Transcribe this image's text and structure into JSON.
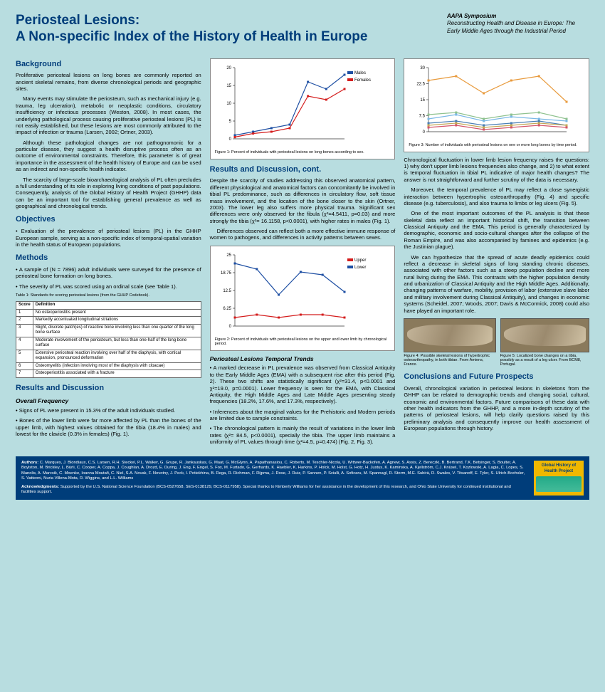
{
  "title_line1": "Periosteal Lesions:",
  "title_line2": "A Non-specific Index of the History of Health in Europe",
  "symposium": {
    "name": "AAPA Symposium",
    "subtitle": "Reconstructing Health and Disease in Europe: The Early Middle Ages through the Industrial Period"
  },
  "sections": {
    "background": {
      "heading": "Background",
      "p1": "Proliferative periosteal lesions on long bones are commonly reported on ancient skeletal remains, from diverse chronological periods and geographic sites.",
      "p2": "Many events may stimulate the periosteum, such as mechanical injury (e.g. trauma, leg ulceration), metabolic or neoplastic conditions, circulatory insufficiency or infectious processes (Weston, 2008). In most cases, the underlying pathological process causing proliferative periosteal lesions (PL) is not easily established, but these lesions are most commonly attributed to the impact of infection or trauma (Larsen, 2002; Ortner, 2003).",
      "p3": "Although these pathological changes are not pathognomonic for a particular disease, they suggest a health disruptive process often as an outcome of environmental constraints. Therefore, this parameter is of great importance in the assessment of the health history of Europe and can be used as an indirect and non-specific health indicator.",
      "p4": "The scarcity of large-scale bioarchaeological analysis of PL often precludes a full understanding of its role in exploring living conditions of past populations. Consequently, analysis of the Global History of Health Project (GHHP) data can be an important tool for establishing general prevalence as well as geographical and chronological trends."
    },
    "objectives": {
      "heading": "Objectives",
      "p1": "• Evaluation of the prevalence of periosteal lesions (PL) in the GHHP European sample, serving as a non-specific index of temporal-spatial variation in the health status of European populations."
    },
    "methods": {
      "heading": "Methods",
      "p1": "• A sample of (N = 7896) adult individuals were surveyed for the presence of periosteal bone formation on long bones.",
      "p2": "• The severity of PL was scored using an ordinal scale (see Table 1)."
    },
    "results": {
      "heading": "Results and Discussion",
      "overall_heading": "Overall Frequency",
      "p1": "• Signs of PL were present in 15.3% of the adult individuals studied.",
      "p2": "• Bones of the lower limb were far more affected by PL than the bones of the upper limb, with highest values obtained for the tibia (18.4% in males) and lowest for the clavicle (0.3% in females) (Fig. 1)."
    },
    "results_cont": {
      "heading": "Results and Discussion, cont.",
      "p1": "Despite the scarcity of studies addressing this observed anatomical pattern, different physiological and anatomical factors can concomitantly be involved in tibial PL predominance, such as differences in circulatory flow, soft tissue mass involvement, and the location of the bone closer to the skin (Ortner, 2003). The lower leg also suffers more physical trauma. Significant sex differences were only observed for the fibula (χ²=4.5411, p=0.03) and more strongly the tibia (χ²= 16.1158, p<0.0001), with higher rates in males (Fig. 1).",
      "p2": "Differences observed can reflect both a more effective immune response of women to pathogens, and differences in activity patterns between sexes."
    },
    "temporal": {
      "heading": "Periosteal Lesions Temporal Trends",
      "p1": "• A marked decrease in PL prevalence was observed from Classical Antiquity to the Early Middle Ages (EMA) with a subsequent rise after this period (Fig. 2). These two shifts are statistically significant (χ²=31.4, p<0.0001 and χ²=19.0, p=0.0001). Lower frequency is seen for the EMA, with Classical Antiquity, the High Middle Ages and Late Middle Ages presenting steady frequencies (18.2%, 17.6%, and 17.3%, respectively).",
      "p2": "• Inferences about the marginal values for the Prehistoric and Modern periods are limited due to sample constraints.",
      "p3": "• The chronological pattern is mainly the result of variations in the lower limb rates (χ²= 84.5, p<0.0001), specially the tibia. The upper limb maintains a uniformity of PL values through time (χ²=4.5, p=0.474) (Fig. 2, Fig. 3)."
    },
    "col3": {
      "p1": "Chronological fluctuation in lower limb lesion frequency raises the questions: 1) why don't upper limb lesions frequencies also change, and 2) to what extent is temporal fluctuation in tibial PL indicative of major health changes? The answer is not straightforward and further scrutiny of the data is necessary.",
      "p2": "Moreover, the temporal prevalence of PL may reflect a close synergistic interaction between hypertrophic osteoarthropathy (Fig. 4) and specific disease (e.g. tuberculosis), and also trauma to limbs or leg ulcers (Fig. 5).",
      "p3": "One of the most important outcomes of the PL analysis is that these skeletal data reflect an important historical shift, the transition between Classical Antiquity and the EMA. This period is generally characterized by demographic, economic and socio-cultural changes after the collapse of the Roman Empire, and was also accompanied by famines and epidemics (e.g. the Justinian plague).",
      "p4": "We can hypothesize that the spread of acute deadly epidemics could reflect a decrease in skeletal signs of long standing chronic diseases, associated with other factors such as a steep population decline and more rural living during the EMA. This contrasts with the higher population density and urbanization of Classical Antiquity and the High Middle Ages. Additionally, changing patterns of warfare, mobility, provision of labor (extensive slave labor and military involvement during Classical Antiquity), and changes in economic systems (Scheidel, 2007; Woods, 2007; Davis & McCormick, 2008) could also have played an important role."
    },
    "conclusions": {
      "heading": "Conclusions and Future Prospects",
      "p1": "Overall, chronological variation in periosteal lesions in skeletons from the GHHP can be related to demographic trends and changing social, cultural, economic and environmental factors. Future comparisons of these data with other health indicators from the GHHP, and a more in-depth scrutiny of the patterns of periosteal lesions, will help clarify questions raised by this preliminary analysis and consequently improve our health assessment of European populations through history."
    }
  },
  "table1": {
    "caption": "Table 1: Standards for scoring periosteal lesions (from the GHHP Codebook).",
    "header": [
      "Score",
      "Definition"
    ],
    "rows": [
      [
        "1",
        "No osteoperiostitis present"
      ],
      [
        "2",
        "Markedly accentuated longitudinal striations"
      ],
      [
        "3",
        "Slight, discrete patch(es) of reactive bone involving less than one quarter of the long bone surface"
      ],
      [
        "4",
        "Moderate involvement of the periosteum, but less than one-half of the long bone surface"
      ],
      [
        "5",
        "Extensive periosteal reaction involving over half of the diaphysis, with cortical expansion, pronounced deformation"
      ],
      [
        "6",
        "Osteomyelitis (infection involving most of the diaphysis with cloacae)"
      ],
      [
        "7",
        "Osteoperiostitis associated with a fracture"
      ]
    ]
  },
  "fig1": {
    "caption": "Figure 1: Percent of individuals with periosteal lesions on long bones according to sex.",
    "legend": [
      "Males",
      "Females"
    ],
    "colors": [
      "#1e4fa3",
      "#d41c1c"
    ],
    "ymax": 20,
    "males": [
      1,
      2,
      3,
      4,
      16,
      14,
      18
    ],
    "females": [
      0.5,
      1.5,
      2,
      3,
      12,
      11,
      14
    ]
  },
  "fig2": {
    "caption": "Figure 2: Percent of individuals with periosteal lesions on the upper and lower limb by chronological period.",
    "legend": [
      "Upper",
      "Lower"
    ],
    "colors": [
      "#d41c1c",
      "#1e4fa3"
    ],
    "ymax": 25,
    "upper": [
      3,
      4,
      3,
      4,
      4,
      3
    ],
    "lower": [
      22,
      20,
      11,
      19,
      18,
      12
    ]
  },
  "fig3": {
    "caption": "Figure 3: Number of individuals with periosteal lesions on one or more long bones by time period.",
    "colors": [
      "#e89a3c",
      "#7ab8e6",
      "#4a7fb5",
      "#d4556a",
      "#8fc28f",
      "#c4a858"
    ],
    "ymax": 30,
    "series": [
      [
        24,
        26,
        18,
        24,
        26,
        14
      ],
      [
        6,
        8,
        5,
        7,
        6,
        5
      ],
      [
        4,
        5,
        3,
        4,
        5,
        3
      ],
      [
        2,
        3,
        1,
        2,
        3,
        2
      ],
      [
        8,
        9,
        6,
        8,
        9,
        6
      ],
      [
        3,
        4,
        2,
        3,
        4,
        3
      ]
    ]
  },
  "fig4_caption": "Figure 4: Possible skeletal lesions of hypertrophic osteoarthropathy, in both tibiae. From Amiens, France.",
  "fig5_caption": "Figure 5: Localized bone changes on a tibia, possibly as a result of a leg ulcer. From BCM8, Portugal.",
  "footer": {
    "authors_label": "Authors:",
    "authors": "C. Marques, J. Blondiaux, C.S. Larsen, R.H. Steckel, P.L. Walker, G. Grupe, R. Jankauskas, G. Maat, G. McGlynn, A. Papathanasiou, C. Roberts, M. Teschler-Nicola, U. Wittwer-Backofen, A. Agnew, S. Assis, Z. Bereczki, B. Bertrand, T.K. Betsinger, S. Boulter, A. Boylston, M. Brickley, L. Bürli, C. Cooper, A. Coppa, J. Coughlan, A. Drozd, E. During, J. Eng, F. Engel, S. Fox, M. Furtado, G. Gerhards, K. Haebler, K. Harkins, P. Holck, M. Holst, G. Hotz, H. Justus, K. Kaminska, A. Kjellström, C.J. Knüsel, T. Kozlowski, A. Lagia, C. Lopes, S. Manolis, A. Marcsik, C. Moenke, Ioanna Moutafi, C. Niel, S.A. Novak, F. Novotny, J. Peck, I. Potiekhina, B. Rega, R. Richman, F. Rijpma, J. Rose, J. Ruiz, P. Sannen, P. Sciulli, A. Soficaru, M. Spannagl, R. Storm, M.E. Subirà, D. Swales, V. Titsanoff, E. Tyler, S. Ulrich-Bochsler, S. Vatteoni, Nuria Villena-Mota, R. Wiggins, and L.L. Williams",
    "ack_label": "Acknowledgments:",
    "ack": "Supported by the U.S. National Science Foundation (BCS-0527658, SES-0138129, BCS-0117958). Special thanks to Kimberly Williams for her assistance in the development of this research, and Ohio State University for continued institutional and facilities support.",
    "logo": "Global History of Health Project"
  }
}
